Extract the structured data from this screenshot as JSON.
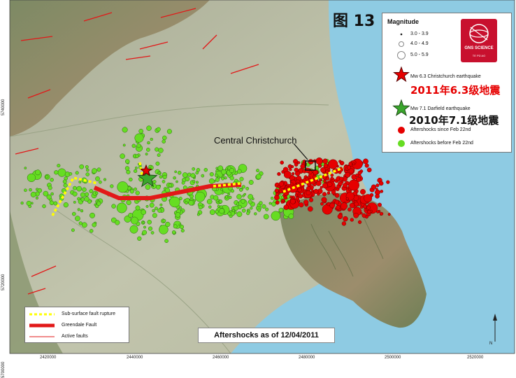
{
  "title": "图 13",
  "caption": "Aftershocks as of 12/04/2011",
  "place_label": "Central Christchurch",
  "legend": {
    "heading": "Magnitude",
    "sizes": [
      "3.0 - 3.9",
      "4.0 - 4.9",
      "5.0 - 5.9"
    ],
    "mw63_label": "Mw 6.3 Christchurch earthquake",
    "mw63_cn": "2011年6.3级地震",
    "mw71_label": "Mw 7.1 Darfield earthquake",
    "mw71_cn": "2010年7.1级地震",
    "since_label": "Aftershocks since Feb 22nd",
    "before_label": "Aftershocks before Feb 22nd",
    "logo_text": "GNS SCIENCE",
    "logo_sub": "TE PŪ AO"
  },
  "fault_legend": {
    "subsurface": "Sub-surface fault rupture",
    "greendale": "Greendale Fault",
    "active": "Active faults"
  },
  "y_ticks": [
    "5740000",
    "5720000",
    "5700000"
  ],
  "x_ticks": [
    "2420000",
    "2440000",
    "2460000",
    "2480000",
    "2500000",
    "2520000"
  ],
  "north_symbol": "N",
  "colors": {
    "aftershock_since": "#e60000",
    "aftershock_before": "#66dd22",
    "fault": "#e21818",
    "subsurface": "#ffff00",
    "sea": "#8ecbe3",
    "land": "#b9bfa6"
  }
}
